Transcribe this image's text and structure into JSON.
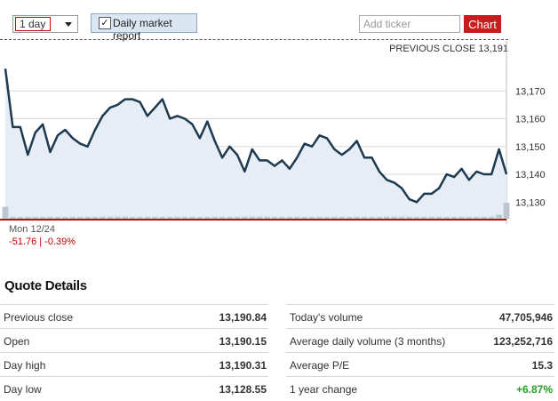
{
  "toolbar": {
    "period_value": "1 day",
    "report_label": "Daily market report",
    "report_checked": true,
    "ticker_placeholder": "Add ticker",
    "chart_button": "Chart"
  },
  "chart": {
    "previous_close_label": "PREVIOUS CLOSE 13,191",
    "date_label": "Mon 12/24",
    "change_text": "-51.76 | -0.39%",
    "line_color": "#1e3a50",
    "fill_color": "#e6edf5",
    "down_color": "#cc0000"
  },
  "chart_data": {
    "type": "area",
    "title": "",
    "xlabel": "",
    "ylabel": "",
    "ylim": [
      13124,
      13188
    ],
    "yticks": [
      13130,
      13140,
      13150,
      13160,
      13170
    ],
    "ytick_labels": [
      "13,130",
      "13,140",
      "13,150",
      "13,160",
      "13,170"
    ],
    "previous_close": 13191,
    "series": [
      {
        "values": [
          13178,
          13157,
          13157,
          13147,
          13155,
          13158,
          13148,
          13154,
          13156,
          13153,
          13151,
          13150,
          13156,
          13161,
          13164,
          13165,
          13167,
          13167,
          13166,
          13161,
          13164,
          13167,
          13160,
          13161,
          13160,
          13158,
          13153,
          13159,
          13152,
          13146,
          13150,
          13147,
          13141,
          13149,
          13145,
          13145,
          13143,
          13145,
          13142,
          13146,
          13151,
          13150,
          13154,
          13153,
          13149,
          13147,
          13149,
          13152,
          13146,
          13146,
          13141,
          13138,
          13137,
          13135,
          13131,
          13130,
          13133,
          13133,
          13135,
          13140,
          13139,
          13142,
          13138,
          13141,
          13140,
          13140,
          13149,
          13140
        ]
      }
    ],
    "volume": [
      6,
      1,
      1,
      1,
      1,
      1,
      1,
      1,
      1,
      1,
      1,
      1,
      1,
      1,
      1,
      1,
      1,
      1,
      1,
      1,
      1,
      1,
      1,
      1,
      1,
      1,
      1,
      1,
      1,
      1,
      1,
      1,
      1,
      1,
      1,
      1,
      1,
      1,
      1,
      1,
      1,
      1,
      1,
      1,
      1,
      1,
      1,
      1,
      1,
      1,
      1,
      1,
      1,
      1,
      1,
      1,
      1,
      1,
      1,
      1,
      1,
      1,
      1,
      1,
      1,
      1,
      2,
      8
    ]
  },
  "quote": {
    "title": "Quote Details",
    "left": [
      {
        "label": "Previous close",
        "value": "13,190.84"
      },
      {
        "label": "Open",
        "value": "13,190.15"
      },
      {
        "label": "Day high",
        "value": "13,190.31"
      },
      {
        "label": "Day low",
        "value": "13,128.55"
      }
    ],
    "right": [
      {
        "label": "Today's volume",
        "value": "47,705,946"
      },
      {
        "label": "Average daily volume (3 months)",
        "value": "123,252,716"
      },
      {
        "label": "Average P/E",
        "value": "15.3"
      },
      {
        "label": "1 year change",
        "value": "+6.87%",
        "positive": true
      }
    ]
  }
}
